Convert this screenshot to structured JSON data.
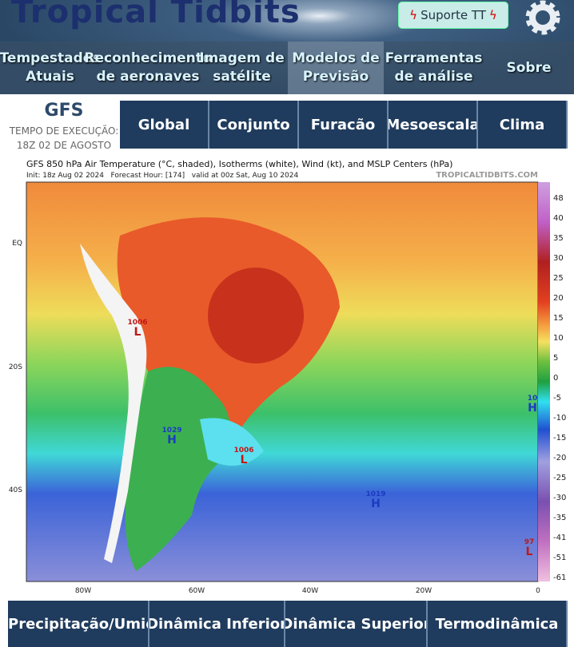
{
  "header": {
    "logo": "Tropical Tidbits",
    "support_button": "Suporte TT"
  },
  "nav": [
    "Tempestades Atuais",
    "Reconhecimento de aeronaves",
    "Imagem de satélite",
    "Modelos de Previsão",
    "Ferramentas de análise",
    "Sobre"
  ],
  "model": {
    "name": "GFS",
    "run_label": "TEMPO DE EXECUÇÃO:",
    "run_time": "18Z 02 DE AGOSTO"
  },
  "model_tabs": [
    "Global",
    "Conjunto",
    "Furacão",
    "Mesoescala",
    "Clima"
  ],
  "map": {
    "title": "GFS 850 hPa Air Temperature (°C, shaded), Isotherms (white), Wind (kt), and MSLP Centers (hPa)",
    "subtitle": "Init: 18z Aug 02 2024   Forecast Hour: [174]   valid at 00z Sat, Aug 10 2024",
    "credit": "TROPICALTIDBITS.COM",
    "colorbar_labels": [
      "48",
      "40",
      "35",
      "30",
      "25",
      "20",
      "15",
      "10",
      "5",
      "0",
      "-5",
      "-10",
      "-15",
      "-20",
      "-25",
      "-30",
      "-35",
      "-41",
      "-51",
      "-61"
    ],
    "x_labels": [
      "80W",
      "60W",
      "40W",
      "20W",
      "0"
    ],
    "y_labels": [
      "EQ",
      "20S",
      "40S"
    ],
    "centers": [
      {
        "value": "1006",
        "type": "L"
      },
      {
        "value": "1029",
        "type": "H"
      },
      {
        "value": "1006",
        "type": "L"
      },
      {
        "value": "1019",
        "type": "H"
      },
      {
        "value": "10",
        "type": "H"
      },
      {
        "value": "97",
        "type": "L"
      }
    ]
  },
  "bottom_tabs": [
    "Precipitação/Umidade",
    "Dinâmica Inferior",
    "Dinâmica Superior",
    "Termodinâmica"
  ]
}
